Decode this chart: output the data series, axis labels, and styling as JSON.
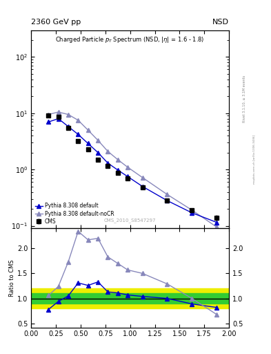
{
  "title_left": "2360 GeV pp",
  "title_right": "NSD",
  "watermark": "CMS_2010_S8547297",
  "rivet_label": "Rivet 3.1.10, ≥ 3.1M events",
  "mcplots_label": "mcplots.cern.ch [arXiv:1306.3436]",
  "cms_pt": [
    0.175,
    0.275,
    0.375,
    0.475,
    0.575,
    0.675,
    0.775,
    0.875,
    0.975,
    1.125,
    1.375,
    1.625,
    1.875
  ],
  "cms_val": [
    9.0,
    8.5,
    5.5,
    3.2,
    2.3,
    1.5,
    1.15,
    0.88,
    0.7,
    0.48,
    0.28,
    0.19,
    0.14
  ],
  "cms_err_lo": [
    0.5,
    0.4,
    0.3,
    0.2,
    0.15,
    0.1,
    0.08,
    0.06,
    0.05,
    0.04,
    0.025,
    0.018,
    0.015
  ],
  "cms_err_hi": [
    0.5,
    0.4,
    0.3,
    0.2,
    0.15,
    0.1,
    0.08,
    0.06,
    0.05,
    0.04,
    0.025,
    0.018,
    0.015
  ],
  "py_default_pt": [
    0.175,
    0.275,
    0.375,
    0.475,
    0.575,
    0.675,
    0.775,
    0.875,
    0.975,
    1.125,
    1.375,
    1.625,
    1.875
  ],
  "py_default_val": [
    7.0,
    8.0,
    5.8,
    4.2,
    2.9,
    2.0,
    1.3,
    0.98,
    0.75,
    0.5,
    0.28,
    0.17,
    0.115
  ],
  "py_nocr_pt": [
    0.175,
    0.275,
    0.375,
    0.475,
    0.575,
    0.675,
    0.775,
    0.875,
    0.975,
    1.125,
    1.375,
    1.625,
    1.875
  ],
  "py_nocr_val": [
    9.5,
    10.5,
    9.5,
    7.5,
    5.0,
    3.3,
    2.1,
    1.5,
    1.1,
    0.72,
    0.36,
    0.19,
    0.095
  ],
  "ratio_x_def": [
    0.175,
    0.275,
    0.375,
    0.475,
    0.575,
    0.675,
    0.775,
    0.875,
    0.975,
    1.125,
    1.375,
    1.625,
    1.875
  ],
  "ratio_def": [
    0.78,
    0.94,
    1.05,
    1.31,
    1.26,
    1.33,
    1.13,
    1.11,
    1.07,
    1.04,
    1.0,
    0.89,
    0.82
  ],
  "ratio_x_nocr": [
    0.175,
    0.275,
    0.375,
    0.475,
    0.575,
    0.675,
    0.775,
    0.875,
    0.975,
    1.125,
    1.375,
    1.625,
    1.875
  ],
  "ratio_nocr": [
    1.06,
    1.24,
    1.73,
    2.34,
    2.17,
    2.2,
    1.83,
    1.7,
    1.57,
    1.5,
    1.29,
    1.0,
    0.68
  ],
  "green_band_lo": 0.9,
  "green_band_hi": 1.1,
  "yellow_band_lo": 0.8,
  "yellow_band_hi": 1.2,
  "color_cms": "#000000",
  "color_py_default": "#0000cc",
  "color_py_nocr": "#8888bb",
  "color_green": "#33cc33",
  "color_yellow": "#eeee00",
  "xlim": [
    0.0,
    2.0
  ],
  "ylim_main": [
    0.09,
    300
  ],
  "ylim_ratio": [
    0.42,
    2.4
  ],
  "ratio_yticks": [
    0.5,
    1.0,
    1.5,
    2.0
  ]
}
